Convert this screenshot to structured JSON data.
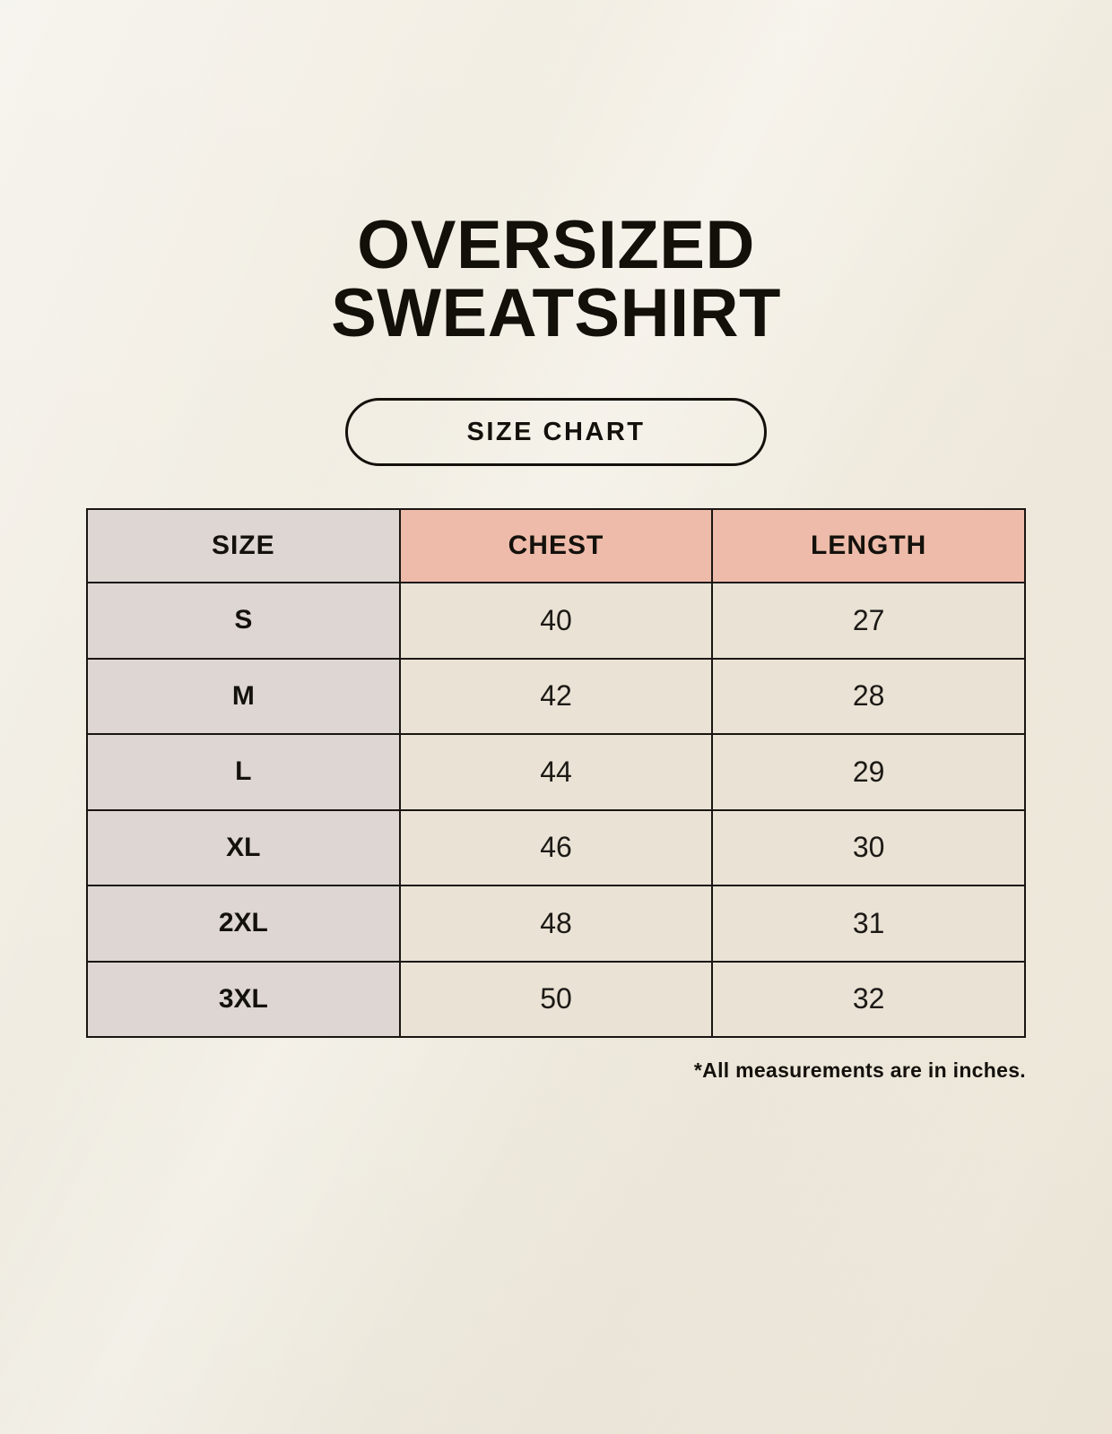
{
  "page": {
    "title": {
      "line1": "OVERSIZED",
      "line2": "SWEATSHIRT"
    },
    "badge": {
      "label": "SIZE CHART"
    },
    "footnote": "*All measurements are in inches."
  },
  "chart_data": {
    "type": "table",
    "title": "SIZE CHART",
    "columns": [
      "SIZE",
      "CHEST",
      "LENGTH"
    ],
    "rows": [
      [
        "S",
        "40",
        "27"
      ],
      [
        "M",
        "42",
        "28"
      ],
      [
        "L",
        "44",
        "29"
      ],
      [
        "XL",
        "46",
        "30"
      ],
      [
        "2XL",
        "48",
        "31"
      ],
      [
        "3XL",
        "50",
        "32"
      ]
    ],
    "note": "*All measurements are in inches."
  },
  "colors": {
    "background": "#f5f1e6",
    "header_accent": "#eebbaa",
    "size_column": "#ddd6d2",
    "data_cell": "#e9e2d5",
    "border": "#191511",
    "text": "#14110c"
  }
}
